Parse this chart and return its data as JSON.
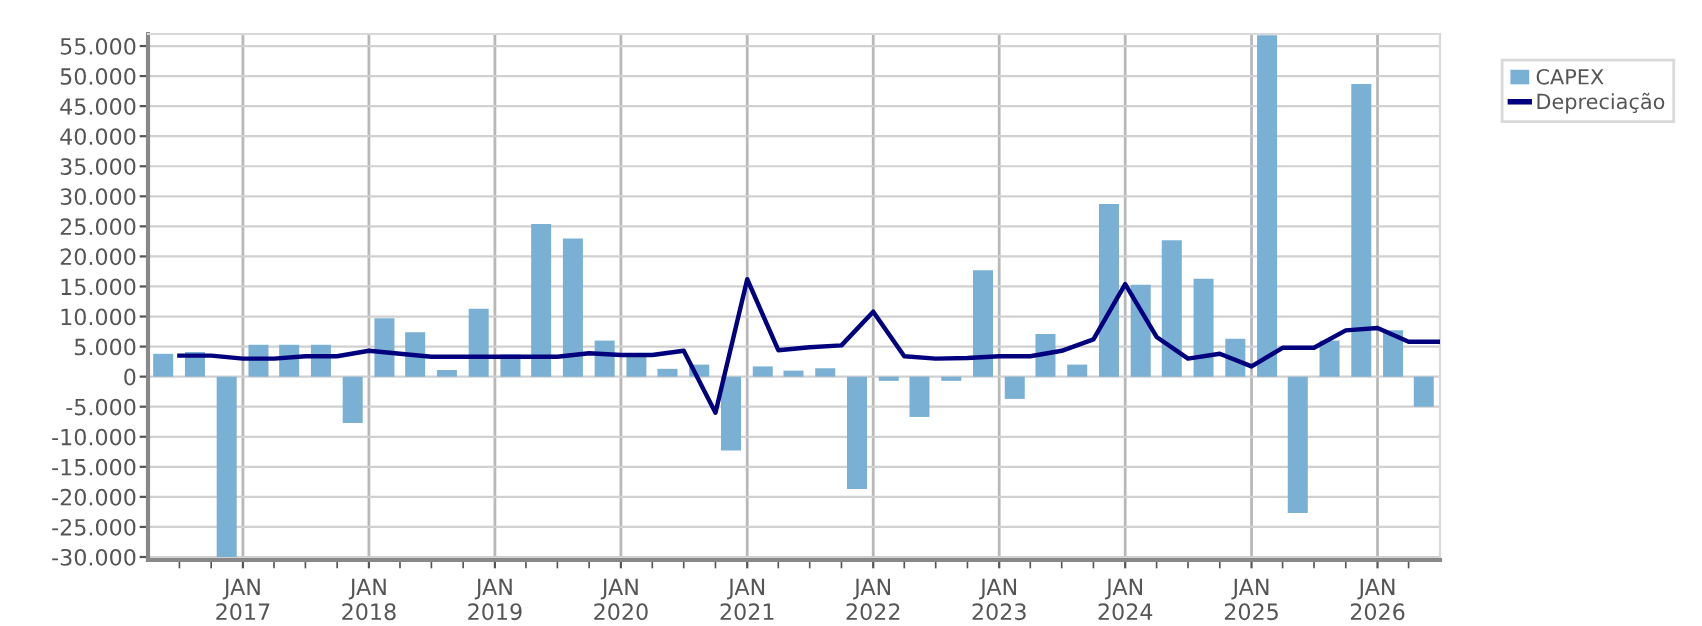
{
  "chart_data": {
    "type": "bar",
    "series": [
      {
        "name": "CAPEX",
        "color": "#7ab0d4",
        "x": [
          "2016-05-15",
          "2016-08-15",
          "2016-11-15",
          "2017-02-15",
          "2017-05-15",
          "2017-08-15",
          "2017-11-15",
          "2018-02-15",
          "2018-05-15",
          "2018-08-15",
          "2018-11-15",
          "2019-02-15",
          "2019-05-15",
          "2019-08-15",
          "2019-11-15",
          "2020-02-15",
          "2020-05-15",
          "2020-08-15",
          "2020-11-15",
          "2021-02-15",
          "2021-05-15",
          "2021-08-15",
          "2021-11-15",
          "2022-02-15",
          "2022-05-15",
          "2022-08-15",
          "2022-11-15",
          "2023-02-15",
          "2023-05-15",
          "2023-08-15",
          "2023-11-15",
          "2024-02-15",
          "2024-05-15",
          "2024-08-15",
          "2024-11-15",
          "2025-02-15",
          "2025-05-15",
          "2025-08-15",
          "2025-11-15",
          "2026-02-15",
          "2026-05-15"
        ],
        "values": [
          3800,
          4100,
          -30000,
          5300,
          5300,
          5300,
          -7700,
          9700,
          7400,
          1100,
          11300,
          3700,
          25400,
          23000,
          6000,
          3400,
          1300,
          2000,
          -12300,
          1700,
          1000,
          1400,
          -18700,
          -700,
          -6700,
          -700,
          17700,
          -3700,
          7100,
          2000,
          28700,
          15300,
          22700,
          16300,
          6300,
          56800,
          -22700,
          6000,
          48700,
          7700,
          -5000
        ]
      },
      {
        "name": "Depreciação",
        "type": "line",
        "color": "#00007f",
        "x": [
          "2016-07-01",
          "2016-10-01",
          "2017-01-01",
          "2017-04-01",
          "2017-07-01",
          "2017-10-01",
          "2018-01-01",
          "2018-04-01",
          "2018-07-01",
          "2018-10-01",
          "2019-01-01",
          "2019-04-01",
          "2019-07-01",
          "2019-10-01",
          "2020-01-01",
          "2020-04-01",
          "2020-07-01",
          "2020-10-01",
          "2021-01-01",
          "2021-04-01",
          "2021-07-01",
          "2021-10-01",
          "2022-01-01",
          "2022-04-01",
          "2022-07-01",
          "2022-10-01",
          "2023-01-01",
          "2023-04-01",
          "2023-07-01",
          "2023-10-01",
          "2024-01-01",
          "2024-04-01",
          "2024-07-01",
          "2024-10-01",
          "2025-01-01",
          "2025-04-01",
          "2025-07-01",
          "2025-10-01",
          "2026-01-01",
          "2026-04-01",
          "2026-07-01"
        ],
        "values": [
          3500,
          3500,
          3000,
          3000,
          3400,
          3400,
          4300,
          3800,
          3300,
          3300,
          3300,
          3300,
          3300,
          3900,
          3600,
          3600,
          4300,
          -6000,
          16200,
          4400,
          4900,
          5200,
          10800,
          3400,
          3000,
          3100,
          3400,
          3400,
          4300,
          6200,
          15400,
          6600,
          3000,
          3800,
          1700,
          4800,
          4800,
          7700,
          8100,
          5800,
          5800
        ]
      }
    ],
    "xlim": [
      "2016-04-01",
      "2026-07-01"
    ],
    "xticks": [
      {
        "value": "2016-07-01",
        "label": null
      },
      {
        "value": "2016-10-01",
        "label": null
      },
      {
        "value": "2017-01-01",
        "label": "JAN\n2017"
      },
      {
        "value": "2017-04-01",
        "label": null
      },
      {
        "value": "2017-07-01",
        "label": null
      },
      {
        "value": "2017-10-01",
        "label": null
      },
      {
        "value": "2018-01-01",
        "label": "JAN\n2018"
      },
      {
        "value": "2018-04-01",
        "label": null
      },
      {
        "value": "2018-07-01",
        "label": null
      },
      {
        "value": "2018-10-01",
        "label": null
      },
      {
        "value": "2019-01-01",
        "label": "JAN\n2019"
      },
      {
        "value": "2019-04-01",
        "label": null
      },
      {
        "value": "2019-07-01",
        "label": null
      },
      {
        "value": "2019-10-01",
        "label": null
      },
      {
        "value": "2020-01-01",
        "label": "JAN\n2020"
      },
      {
        "value": "2020-04-01",
        "label": null
      },
      {
        "value": "2020-07-01",
        "label": null
      },
      {
        "value": "2020-10-01",
        "label": null
      },
      {
        "value": "2021-01-01",
        "label": "JAN\n2021"
      },
      {
        "value": "2021-04-01",
        "label": null
      },
      {
        "value": "2021-07-01",
        "label": null
      },
      {
        "value": "2021-10-01",
        "label": null
      },
      {
        "value": "2022-01-01",
        "label": "JAN\n2022"
      },
      {
        "value": "2022-04-01",
        "label": null
      },
      {
        "value": "2022-07-01",
        "label": null
      },
      {
        "value": "2022-10-01",
        "label": null
      },
      {
        "value": "2023-01-01",
        "label": "JAN\n2023"
      },
      {
        "value": "2023-04-01",
        "label": null
      },
      {
        "value": "2023-07-01",
        "label": null
      },
      {
        "value": "2023-10-01",
        "label": null
      },
      {
        "value": "2024-01-01",
        "label": "JAN\n2024"
      },
      {
        "value": "2024-04-01",
        "label": null
      },
      {
        "value": "2024-07-01",
        "label": null
      },
      {
        "value": "2024-10-01",
        "label": null
      },
      {
        "value": "2025-01-01",
        "label": "JAN\n2025"
      },
      {
        "value": "2025-04-01",
        "label": null
      },
      {
        "value": "2025-07-01",
        "label": null
      },
      {
        "value": "2025-10-01",
        "label": null
      },
      {
        "value": "2026-01-01",
        "label": "JAN\n2026"
      },
      {
        "value": "2026-04-01",
        "label": null
      }
    ],
    "ylim": [
      -30500,
      57000
    ],
    "yticks": [
      {
        "value": -30000,
        "label": "-30.000"
      },
      {
        "value": -25000,
        "label": "-25.000"
      },
      {
        "value": -20000,
        "label": "-20.000"
      },
      {
        "value": -15000,
        "label": "-15.000"
      },
      {
        "value": -10000,
        "label": "-10.000"
      },
      {
        "value": -5000,
        "label": "-5.000"
      },
      0,
      {
        "value": 5000,
        "label": "5.000"
      },
      {
        "value": 10000,
        "label": "10.000"
      },
      {
        "value": 15000,
        "label": "15.000"
      },
      {
        "value": 20000,
        "label": "20.000"
      },
      {
        "value": 25000,
        "label": "25.000"
      },
      {
        "value": 30000,
        "label": "30.000"
      },
      {
        "value": 35000,
        "label": "35.000"
      },
      {
        "value": 40000,
        "label": "40.000"
      },
      {
        "value": 45000,
        "label": "45.000"
      },
      {
        "value": 50000,
        "label": "50.000"
      },
      {
        "value": 55000,
        "label": "55.000"
      }
    ],
    "grid": true,
    "legend": "top right"
  }
}
